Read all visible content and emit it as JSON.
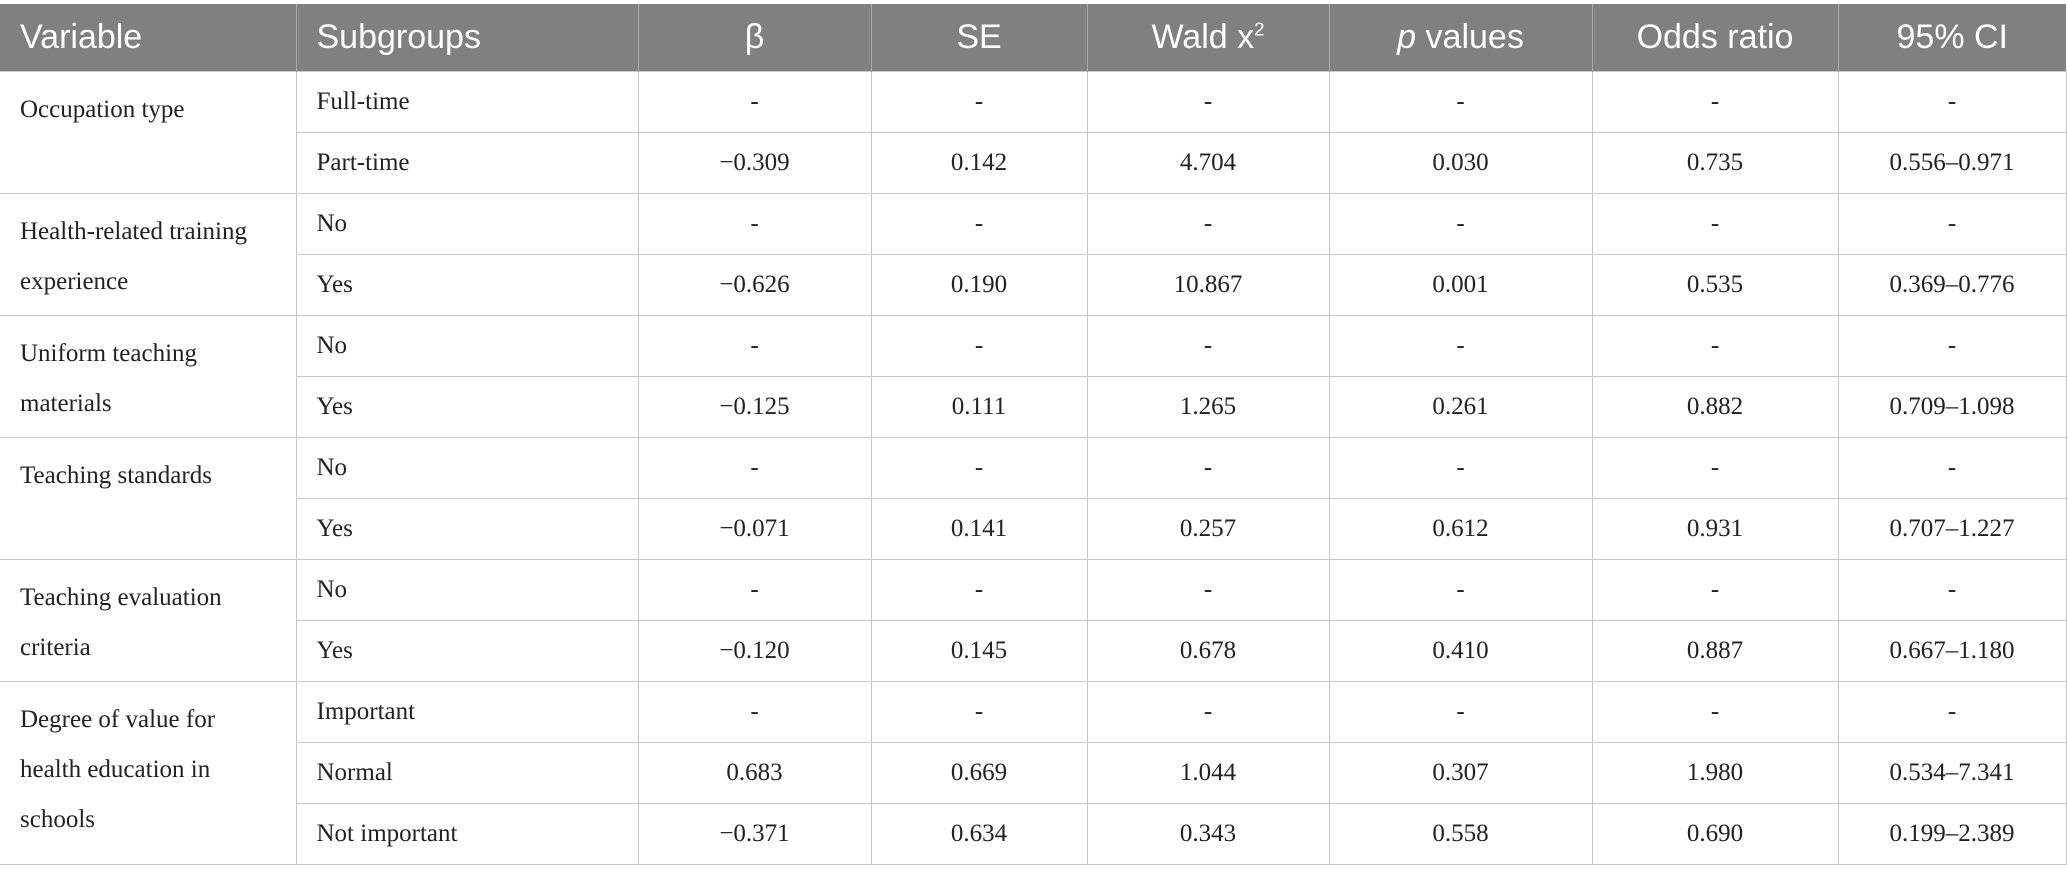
{
  "headers": {
    "variable": "Variable",
    "subgroups": "Subgroups",
    "beta": "β",
    "se": "SE",
    "wald": "Wald x",
    "wald_sup": "2",
    "p_italic": "p",
    "p_rest": " values",
    "odds": "Odds ratio",
    "ci": "95% CI"
  },
  "groups": [
    {
      "variable": "Occupation type",
      "rows": [
        {
          "subgroup": "Full-time",
          "beta": "-",
          "se": "-",
          "wald": "-",
          "p": "-",
          "or": "-",
          "ci": "-"
        },
        {
          "subgroup": "Part-time",
          "beta": "−0.309",
          "se": "0.142",
          "wald": "4.704",
          "p": "0.030",
          "or": "0.735",
          "ci": "0.556–0.971"
        }
      ]
    },
    {
      "variable": "Health-related training experience",
      "rows": [
        {
          "subgroup": "No",
          "beta": "-",
          "se": "-",
          "wald": "-",
          "p": "-",
          "or": "-",
          "ci": "-"
        },
        {
          "subgroup": "Yes",
          "beta": "−0.626",
          "se": "0.190",
          "wald": "10.867",
          "p": "0.001",
          "or": "0.535",
          "ci": "0.369–0.776"
        }
      ]
    },
    {
      "variable": "Uniform teaching materials",
      "rows": [
        {
          "subgroup": "No",
          "beta": "-",
          "se": "-",
          "wald": "-",
          "p": "-",
          "or": "-",
          "ci": "-"
        },
        {
          "subgroup": "Yes",
          "beta": "−0.125",
          "se": "0.111",
          "wald": "1.265",
          "p": "0.261",
          "or": "0.882",
          "ci": "0.709–1.098"
        }
      ]
    },
    {
      "variable": "Teaching standards",
      "rows": [
        {
          "subgroup": "No",
          "beta": "-",
          "se": "-",
          "wald": "-",
          "p": "-",
          "or": "-",
          "ci": "-"
        },
        {
          "subgroup": "Yes",
          "beta": "−0.071",
          "se": "0.141",
          "wald": "0.257",
          "p": "0.612",
          "or": "0.931",
          "ci": "0.707–1.227"
        }
      ]
    },
    {
      "variable": "Teaching evaluation criteria",
      "rows": [
        {
          "subgroup": "No",
          "beta": "-",
          "se": "-",
          "wald": "-",
          "p": "-",
          "or": "-",
          "ci": "-"
        },
        {
          "subgroup": "Yes",
          "beta": "−0.120",
          "se": "0.145",
          "wald": "0.678",
          "p": "0.410",
          "or": "0.887",
          "ci": "0.667–1.180"
        }
      ]
    },
    {
      "variable": "Degree of value for health education in schools",
      "rows": [
        {
          "subgroup": "Important",
          "beta": "-",
          "se": "-",
          "wald": "-",
          "p": "-",
          "or": "-",
          "ci": "-"
        },
        {
          "subgroup": "Normal",
          "beta": "0.683",
          "se": "0.669",
          "wald": "1.044",
          "p": "0.307",
          "or": "1.980",
          "ci": "0.534–7.341"
        },
        {
          "subgroup": "Not important",
          "beta": "−0.371",
          "se": "0.634",
          "wald": "0.343",
          "p": "0.558",
          "or": "0.690",
          "ci": "0.199–2.389"
        }
      ]
    }
  ]
}
